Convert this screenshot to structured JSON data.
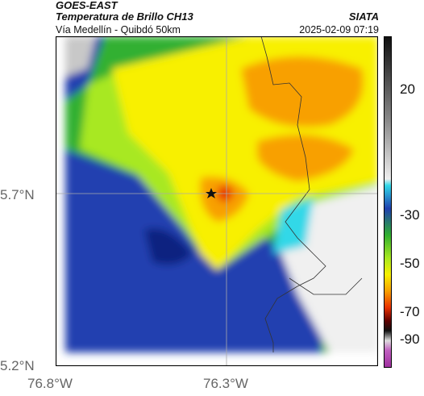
{
  "header": {
    "title1": "GOES-EAST",
    "title2": "Temperatura de Brillo CH13",
    "subtitle": "Vía Medellín - Quibdó 50km",
    "source": "SIATA",
    "datetime": "2025-02-09 07:19"
  },
  "axes": {
    "lat_ticks": [
      "5.7°N",
      "5.2°N"
    ],
    "lon_ticks": [
      "76.8°W",
      "76.3°W"
    ]
  },
  "colorbar": {
    "ticks": [
      "20",
      "-30",
      "-50",
      "-70",
      "-90"
    ]
  },
  "map": {
    "marker": "star-icon",
    "colors": {
      "white": "#f0f0f0",
      "gray": "#c8c8c8",
      "cyan": "#30d8e8",
      "blue": "#2040b0",
      "darkblue": "#102080",
      "green": "#30b030",
      "lightgreen": "#a8e820",
      "yellow": "#f8f000",
      "orange": "#f8a000",
      "red": "#e83000"
    }
  }
}
